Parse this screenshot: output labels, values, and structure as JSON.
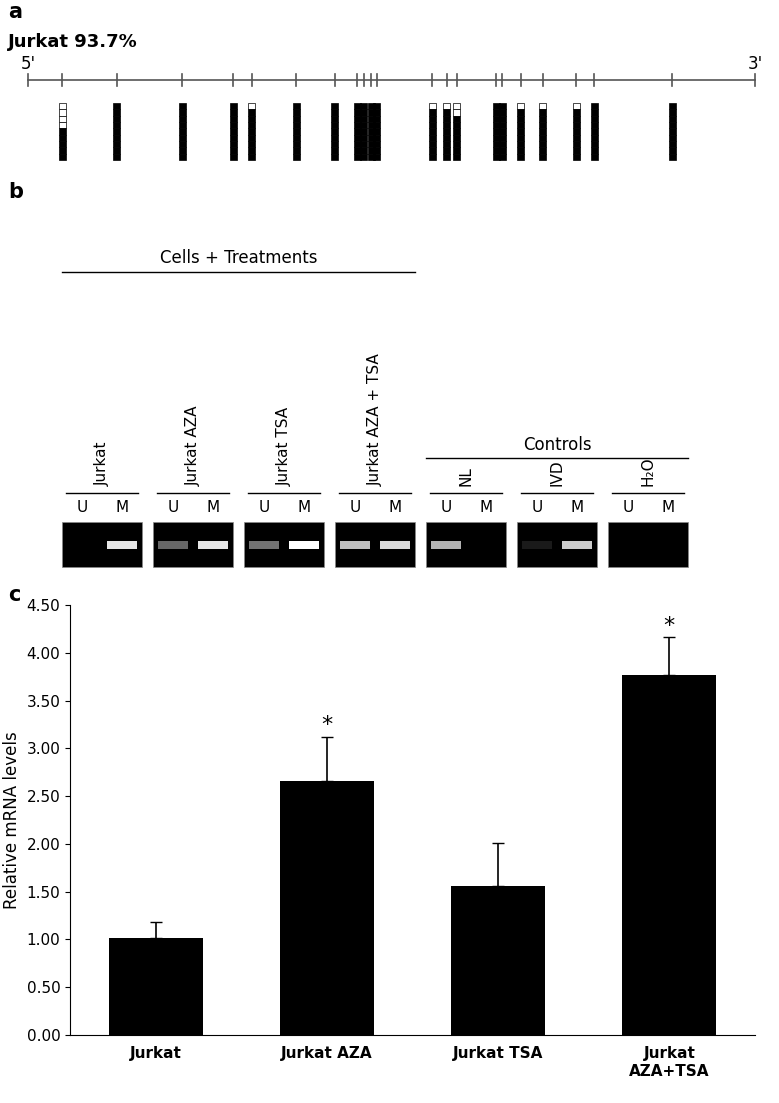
{
  "panel_a": {
    "label": "a",
    "title": "Jurkat 93.7%",
    "ends": [
      "5'",
      "3'"
    ],
    "clones": 9,
    "sites": {
      "positions": [
        4.7,
        12.2,
        21.2,
        28.2,
        30.8,
        36.9,
        42.2,
        45.3,
        46.2,
        47.2,
        48.0,
        55.6,
        57.6,
        59.0,
        64.4,
        65.2,
        67.8,
        70.8,
        75.4,
        77.9,
        88.6
      ],
      "unmethylated": [
        4,
        0,
        0,
        0,
        1,
        0,
        0,
        0,
        0,
        0,
        0,
        1,
        1,
        2,
        0,
        0,
        1,
        1,
        1,
        0,
        0
      ]
    }
  },
  "panel_b": {
    "label": "b",
    "header": "Cells + Treatments",
    "controls_header": "Controls",
    "lanes": [
      "U",
      "M"
    ],
    "groups": [
      {
        "name": "Jurkat",
        "control": false,
        "bands": [
          0.0,
          0.9
        ]
      },
      {
        "name": "Jurkat AZA",
        "control": false,
        "bands": [
          0.4,
          0.9
        ]
      },
      {
        "name": "Jurkat TSA",
        "control": false,
        "bands": [
          0.45,
          1.0
        ]
      },
      {
        "name": "Jurkat AZA + TSA",
        "control": false,
        "bands": [
          0.75,
          0.85
        ]
      },
      {
        "name": "NL",
        "control": true,
        "bands": [
          0.7,
          0.0
        ]
      },
      {
        "name": "IVD",
        "control": true,
        "bands": [
          0.1,
          0.8
        ]
      },
      {
        "name": "H₂O",
        "control": true,
        "bands": [
          0.0,
          0.0
        ]
      }
    ]
  },
  "chart_data": {
    "type": "bar",
    "panel_label": "c",
    "y_label": "Relative mRNA levels",
    "categories": [
      "Jurkat",
      "Jurkat AZA",
      "Jurkat TSA",
      "Jurkat\nAZA+TSA"
    ],
    "values": [
      1.01,
      2.66,
      1.56,
      3.77
    ],
    "errors": [
      0.17,
      0.46,
      0.45,
      0.39
    ],
    "significance": [
      null,
      "*",
      null,
      "*"
    ],
    "color": "#000000",
    "ylim": [
      0,
      4.5
    ],
    "yticks": [
      {
        "value": 0,
        "label": "0.00"
      },
      {
        "value": 0.5,
        "label": "0.50"
      },
      {
        "value": 1,
        "label": "1.00"
      },
      {
        "value": 1.5,
        "label": "1.50"
      },
      {
        "value": 2,
        "label": "2.00"
      },
      {
        "value": 2.5,
        "label": "2.50"
      },
      {
        "value": 3,
        "label": "3.00"
      },
      {
        "value": 3.5,
        "label": "3.50"
      },
      {
        "value": 4,
        "label": "4.00"
      },
      {
        "value": 4.5,
        "label": "4.50"
      }
    ]
  }
}
